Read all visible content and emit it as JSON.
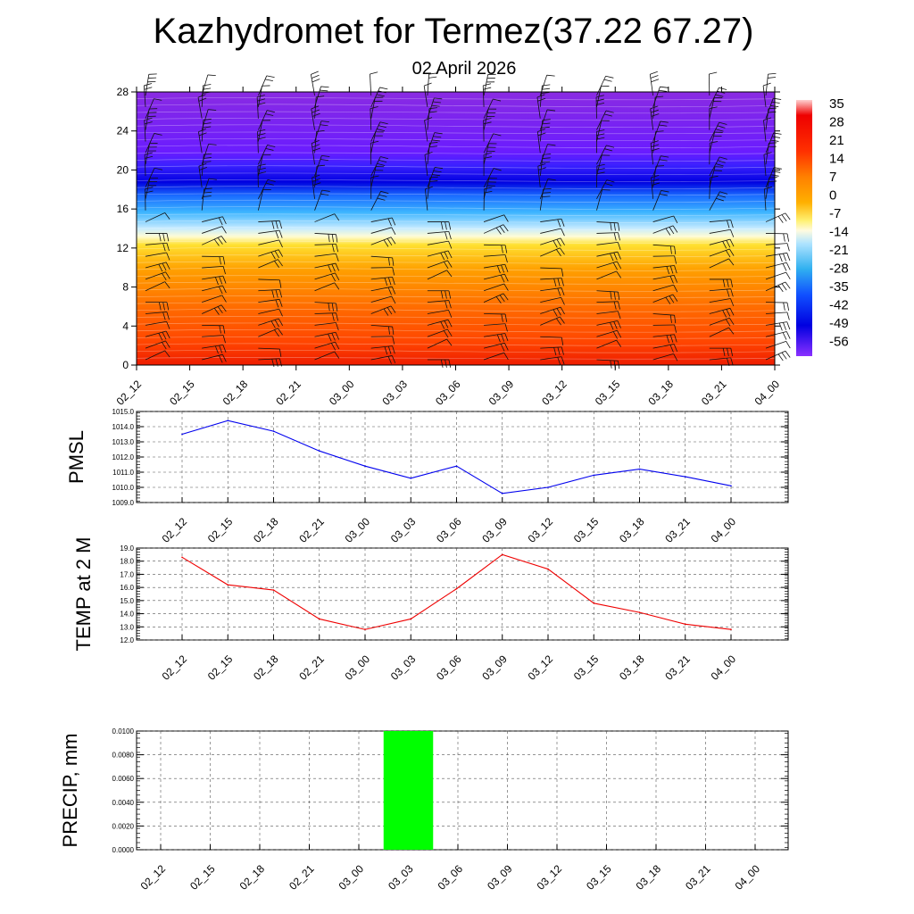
{
  "title": "Kazhydromet for Termez(37.22 67.27)",
  "subtitle": "02 April 2026",
  "time_labels": [
    "02_12",
    "02_15",
    "02_18",
    "02_21",
    "03_00",
    "03_03",
    "03_06",
    "03_09",
    "03_12",
    "03_15",
    "03_18",
    "03_21",
    "04_00"
  ],
  "colorbar_labels": [
    "35",
    "28",
    "21",
    "14",
    "7",
    "0",
    "-7",
    "-14",
    "-21",
    "-28",
    "-35",
    "-42",
    "-49",
    "-56"
  ],
  "colors": {
    "pmsl_line": "#0000ee",
    "temp_line": "#ee0000",
    "precip_bar": "#00ff00",
    "grid": "#555555"
  },
  "chart_data": [
    {
      "type": "heatmap",
      "name": "temperature-profile",
      "title": "Kazhydromet for Termez(37.22 67.27)",
      "subtitle": "02 April 2026",
      "x": [
        "02_12",
        "02_15",
        "02_18",
        "02_21",
        "03_00",
        "03_03",
        "03_06",
        "03_09",
        "03_12",
        "03_15",
        "03_18",
        "03_21",
        "04_00"
      ],
      "ylim": [
        0,
        28
      ],
      "yticks": [
        "0",
        "4",
        "8",
        "12",
        "16",
        "20",
        "24",
        "28"
      ],
      "colorbar": [
        "35",
        "28",
        "21",
        "14",
        "7",
        "0",
        "-7",
        "-14",
        "-21",
        "-28",
        "-35",
        "-42",
        "-49",
        "-56"
      ],
      "overlay": "wind barbs"
    },
    {
      "type": "line",
      "name": "pmsl",
      "ylabel": "PMSL",
      "ylim": [
        1009.0,
        1015.0
      ],
      "yticks": [
        "1009.0",
        "1010.0",
        "1011.0",
        "1012.0",
        "1013.0",
        "1014.0",
        "1015.0"
      ],
      "categories": [
        "02_12",
        "02_15",
        "02_18",
        "02_21",
        "03_00",
        "03_03",
        "03_06",
        "03_09",
        "03_12",
        "03_15",
        "03_18",
        "03_21",
        "04_00"
      ],
      "values": [
        1013.5,
        1014.4,
        1013.7,
        1012.4,
        1011.4,
        1010.6,
        1011.4,
        1009.6,
        1010.0,
        1010.8,
        1011.2,
        1010.7,
        1010.1
      ]
    },
    {
      "type": "line",
      "name": "temp-2m",
      "ylabel": "TEMP at 2 M",
      "ylim": [
        12.0,
        19.0
      ],
      "yticks": [
        "12.0",
        "13.0",
        "14.0",
        "15.0",
        "16.0",
        "17.0",
        "18.0",
        "19.0"
      ],
      "categories": [
        "02_12",
        "02_15",
        "02_18",
        "02_21",
        "03_00",
        "03_03",
        "03_06",
        "03_09",
        "03_12",
        "03_15",
        "03_18",
        "03_21",
        "04_00"
      ],
      "values": [
        18.3,
        16.2,
        15.8,
        13.6,
        12.8,
        13.6,
        15.9,
        18.5,
        17.4,
        14.8,
        14.1,
        13.2,
        12.8
      ]
    },
    {
      "type": "bar",
      "name": "precip",
      "ylabel": "PRECIP, mm",
      "ylim": [
        0,
        0.01
      ],
      "yticks": [
        "0.0000",
        "0.0020",
        "0.0040",
        "0.0060",
        "0.0080",
        "0.0100"
      ],
      "categories": [
        "02_12",
        "02_15",
        "02_18",
        "02_21",
        "03_00",
        "03_03",
        "03_06",
        "03_09",
        "03_12",
        "03_15",
        "03_18",
        "03_21",
        "04_00"
      ],
      "values": [
        0,
        0,
        0,
        0,
        0,
        0.01,
        0,
        0,
        0,
        0,
        0,
        0,
        0
      ]
    }
  ]
}
